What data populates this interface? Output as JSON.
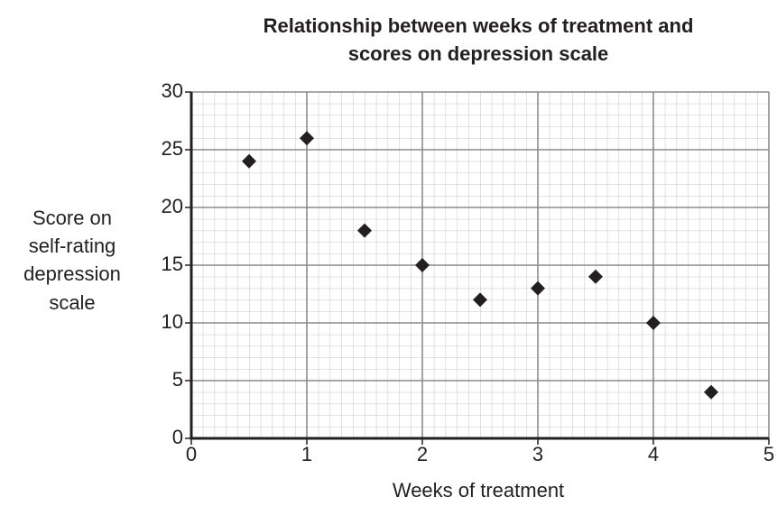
{
  "chart_data": {
    "type": "scatter",
    "title": [
      "Relationship between weeks of treatment and",
      "scores on depression scale"
    ],
    "x_label": "Weeks of treatment",
    "y_label": [
      "Score on",
      "self-rating",
      "depression",
      "scale"
    ],
    "x": [
      0.5,
      1,
      1.5,
      2,
      2.5,
      3,
      3.5,
      4,
      4.5
    ],
    "values": [
      24,
      26,
      18,
      15,
      12,
      13,
      14,
      10,
      4
    ],
    "color": "#231f20",
    "xlim": [
      0,
      5
    ],
    "xticks": [
      0,
      1,
      2,
      3,
      4,
      5
    ],
    "ylim": [
      0,
      30
    ],
    "yticks": [
      0,
      5,
      10,
      15,
      20,
      25,
      30
    ],
    "grid": true
  }
}
